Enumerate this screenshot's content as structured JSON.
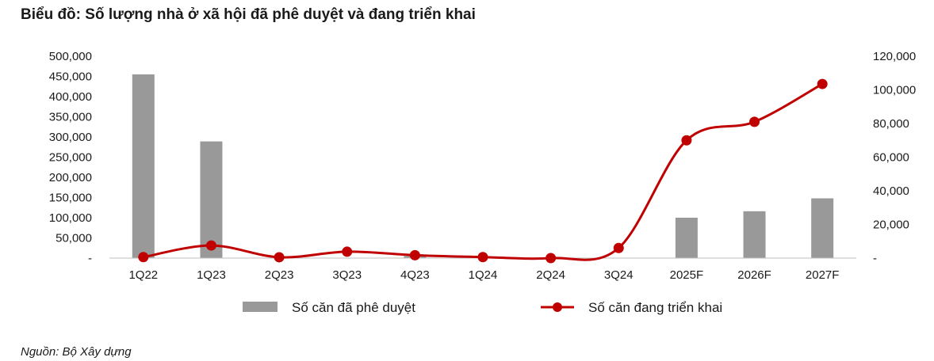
{
  "title": "Biểu đồ: Số lượng nhà ở xã hội đã phê duyệt và đang triển khai",
  "source": "Nguồn: Bộ Xây dựng",
  "chart_data": {
    "type": "bar+line",
    "categories": [
      "1Q22",
      "1Q23",
      "2Q23",
      "3Q23",
      "4Q23",
      "1Q24",
      "2Q24",
      "3Q24",
      "2025F",
      "2026F",
      "2027F"
    ],
    "series": [
      {
        "name": "Số căn đã phê duyệt",
        "type": "bar",
        "axis": "left",
        "color": "#999999",
        "values": [
          455000,
          289000,
          0,
          0,
          5000,
          0,
          0,
          0,
          100000,
          116000,
          148000
        ]
      },
      {
        "name": "Số căn đang triển khai",
        "type": "line",
        "axis": "right",
        "color": "#c00000",
        "values": [
          600,
          7500,
          500,
          3800,
          1700,
          600,
          0,
          6000,
          70000,
          81000,
          103500
        ]
      }
    ],
    "left_axis": {
      "ylim": [
        0,
        500000
      ],
      "ticks": [
        0,
        50000,
        100000,
        150000,
        200000,
        250000,
        300000,
        350000,
        400000,
        450000,
        500000
      ],
      "tick_labels": [
        "-",
        "50,000",
        "100,000",
        "150,000",
        "200,000",
        "250,000",
        "300,000",
        "350,000",
        "400,000",
        "450,000",
        "500,000"
      ]
    },
    "right_axis": {
      "ylim": [
        0,
        120000
      ],
      "ticks": [
        0,
        20000,
        40000,
        60000,
        80000,
        100000,
        120000
      ],
      "tick_labels": [
        "-",
        "20,000",
        "40,000",
        "60,000",
        "80,000",
        "100,000",
        "120,000"
      ]
    },
    "grid": false,
    "legend_position": "bottom"
  }
}
